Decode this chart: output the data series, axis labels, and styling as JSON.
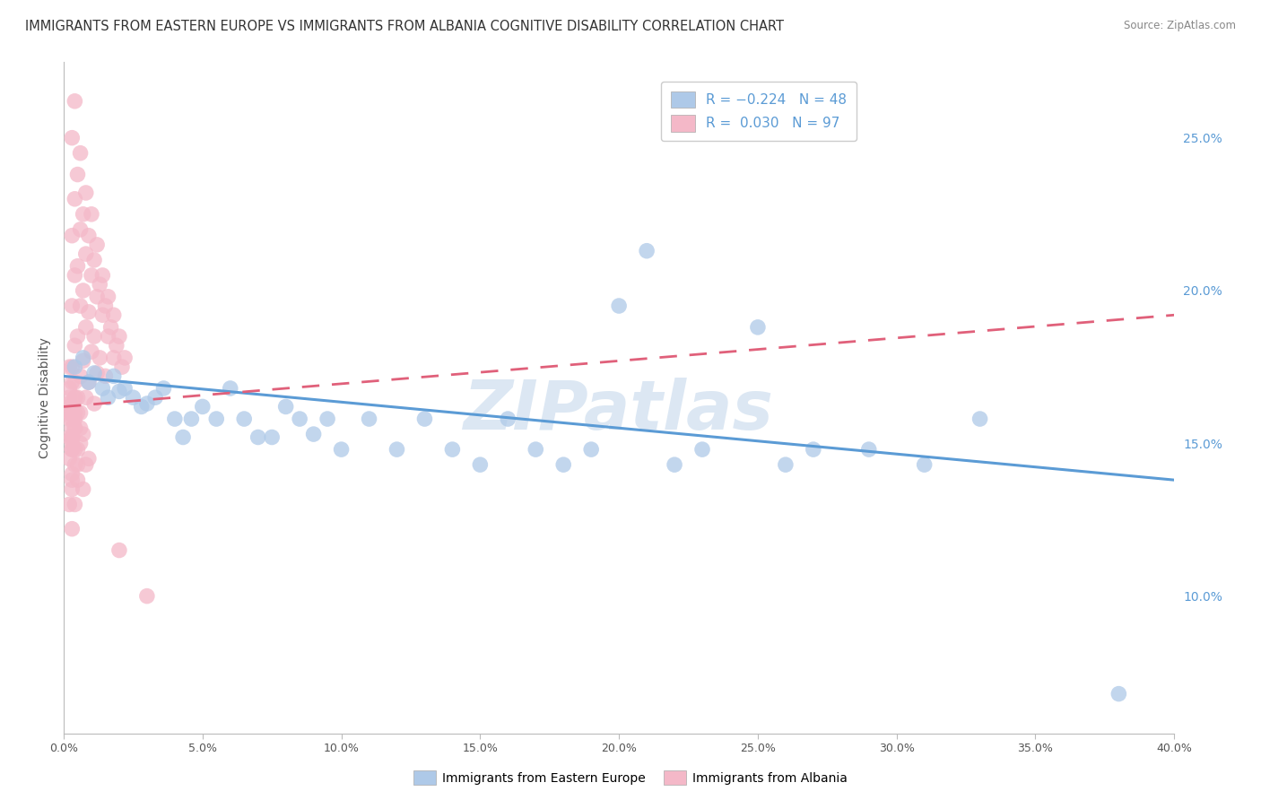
{
  "title": "IMMIGRANTS FROM EASTERN EUROPE VS IMMIGRANTS FROM ALBANIA COGNITIVE DISABILITY CORRELATION CHART",
  "source": "Source: ZipAtlas.com",
  "ylabel": "Cognitive Disability",
  "xlim": [
    0.0,
    0.4
  ],
  "ylim": [
    0.055,
    0.275
  ],
  "xticks": [
    0.0,
    0.05,
    0.1,
    0.15,
    0.2,
    0.25,
    0.3,
    0.35,
    0.4
  ],
  "yticks_right": [
    0.1,
    0.15,
    0.2,
    0.25
  ],
  "ytick_labels_right": [
    "10.0%",
    "15.0%",
    "20.0%",
    "25.0%"
  ],
  "xtick_labels": [
    "0.0%",
    "5.0%",
    "10.0%",
    "15.0%",
    "20.0%",
    "25.0%",
    "30.0%",
    "35.0%",
    "40.0%"
  ],
  "watermark": "ZIPatlas",
  "series_eastern_europe": {
    "color": "#aec9e8",
    "line_color": "#5b9bd5",
    "x": [
      0.004,
      0.007,
      0.009,
      0.011,
      0.014,
      0.016,
      0.018,
      0.02,
      0.022,
      0.025,
      0.028,
      0.03,
      0.033,
      0.036,
      0.04,
      0.043,
      0.046,
      0.05,
      0.055,
      0.06,
      0.065,
      0.07,
      0.075,
      0.08,
      0.085,
      0.09,
      0.095,
      0.1,
      0.11,
      0.12,
      0.13,
      0.14,
      0.15,
      0.16,
      0.17,
      0.18,
      0.19,
      0.2,
      0.21,
      0.22,
      0.23,
      0.25,
      0.26,
      0.27,
      0.29,
      0.31,
      0.33,
      0.38
    ],
    "y": [
      0.175,
      0.178,
      0.17,
      0.173,
      0.168,
      0.165,
      0.172,
      0.167,
      0.168,
      0.165,
      0.162,
      0.163,
      0.165,
      0.168,
      0.158,
      0.152,
      0.158,
      0.162,
      0.158,
      0.168,
      0.158,
      0.152,
      0.152,
      0.162,
      0.158,
      0.153,
      0.158,
      0.148,
      0.158,
      0.148,
      0.158,
      0.148,
      0.143,
      0.158,
      0.148,
      0.143,
      0.148,
      0.195,
      0.213,
      0.143,
      0.148,
      0.188,
      0.143,
      0.148,
      0.148,
      0.143,
      0.158,
      0.068
    ]
  },
  "series_albania": {
    "color": "#f4b8c8",
    "line_color": "#e0607a",
    "x": [
      0.004,
      0.006,
      0.008,
      0.01,
      0.012,
      0.014,
      0.016,
      0.018,
      0.02,
      0.022,
      0.003,
      0.005,
      0.007,
      0.009,
      0.011,
      0.013,
      0.015,
      0.017,
      0.019,
      0.021,
      0.004,
      0.006,
      0.008,
      0.01,
      0.012,
      0.014,
      0.016,
      0.018,
      0.003,
      0.005,
      0.007,
      0.009,
      0.011,
      0.013,
      0.015,
      0.004,
      0.006,
      0.008,
      0.01,
      0.012,
      0.003,
      0.005,
      0.007,
      0.009,
      0.011,
      0.004,
      0.006,
      0.008,
      0.003,
      0.005,
      0.007,
      0.009,
      0.004,
      0.006,
      0.008,
      0.003,
      0.005,
      0.007,
      0.004,
      0.006,
      0.003,
      0.005,
      0.004,
      0.006,
      0.003,
      0.005,
      0.004,
      0.003,
      0.005,
      0.002,
      0.004,
      0.003,
      0.002,
      0.004,
      0.003,
      0.002,
      0.003,
      0.002,
      0.004,
      0.003,
      0.002,
      0.003,
      0.002,
      0.003,
      0.002,
      0.004,
      0.003,
      0.002,
      0.004,
      0.003,
      0.002,
      0.003,
      0.004,
      0.002,
      0.003,
      0.02,
      0.03
    ],
    "y": [
      0.262,
      0.245,
      0.232,
      0.225,
      0.215,
      0.205,
      0.198,
      0.192,
      0.185,
      0.178,
      0.25,
      0.238,
      0.225,
      0.218,
      0.21,
      0.202,
      0.195,
      0.188,
      0.182,
      0.175,
      0.23,
      0.22,
      0.212,
      0.205,
      0.198,
      0.192,
      0.185,
      0.178,
      0.218,
      0.208,
      0.2,
      0.193,
      0.185,
      0.178,
      0.172,
      0.205,
      0.195,
      0.188,
      0.18,
      0.173,
      0.195,
      0.185,
      0.177,
      0.17,
      0.163,
      0.182,
      0.172,
      0.165,
      0.17,
      0.16,
      0.153,
      0.145,
      0.16,
      0.15,
      0.143,
      0.152,
      0.143,
      0.135,
      0.17,
      0.16,
      0.175,
      0.165,
      0.165,
      0.155,
      0.158,
      0.148,
      0.155,
      0.148,
      0.138,
      0.175,
      0.165,
      0.16,
      0.168,
      0.158,
      0.152,
      0.162,
      0.155,
      0.165,
      0.155,
      0.148,
      0.158,
      0.15,
      0.16,
      0.152,
      0.163,
      0.148,
      0.14,
      0.152,
      0.143,
      0.135,
      0.145,
      0.138,
      0.13,
      0.13,
      0.122,
      0.115,
      0.1
    ]
  },
  "trendline_eastern_europe": {
    "x_start": 0.0,
    "x_end": 0.4,
    "y_start": 0.172,
    "y_end": 0.138,
    "color": "#5b9bd5"
  },
  "trendline_albania": {
    "x_start": 0.0,
    "x_end": 0.4,
    "y_start": 0.162,
    "y_end": 0.192,
    "color": "#e0607a"
  },
  "background_color": "#ffffff",
  "grid_color": "#cccccc",
  "title_fontsize": 10.5,
  "axis_label_fontsize": 10,
  "tick_fontsize": 9,
  "watermark_color": "#c5d8ec",
  "watermark_fontsize": 55
}
